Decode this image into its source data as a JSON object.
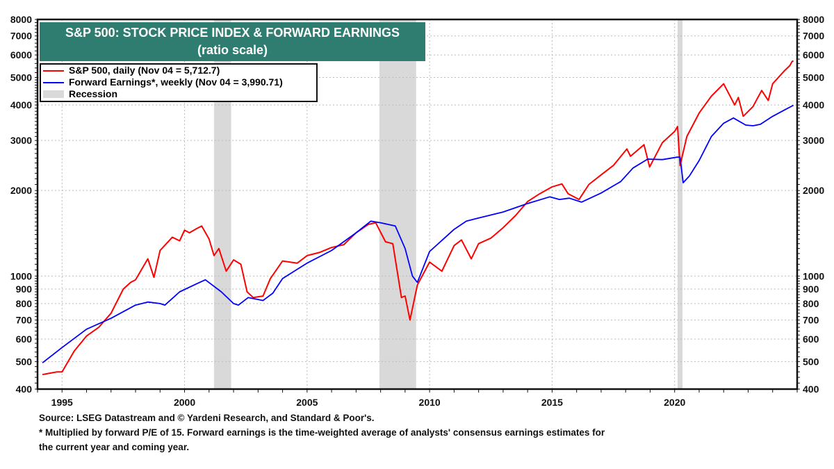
{
  "chart_data": {
    "type": "line",
    "title": "S&P 500: STOCK PRICE INDEX & FORWARD EARNINGS",
    "subtitle": "(ratio scale)",
    "y_scale": "log",
    "ylim": [
      400,
      8000
    ],
    "xlim": [
      1994,
      2025
    ],
    "yticks": [
      "400",
      "500",
      "600",
      "700",
      "800",
      "900",
      "1000",
      "2000",
      "3000",
      "4000",
      "5000",
      "6000",
      "7000",
      "8000"
    ],
    "xticks": [
      "1995",
      "2000",
      "2005",
      "2010",
      "2015",
      "2020"
    ],
    "grid": true,
    "legend_position": "top-left",
    "legend": {
      "sp500": "S&P 500, daily (Nov 04 = 5,712.7)",
      "earnings": "Forward Earnings*, weekly (Nov 04 = 3,990.71)",
      "recession": "Recession"
    },
    "recessions": [
      [
        2001.2,
        2001.9
      ],
      [
        2007.95,
        2009.45
      ],
      [
        2020.12,
        2020.32
      ]
    ],
    "series": [
      {
        "name": "S&P 500, daily",
        "color": "#ff0000",
        "x": [
          1994.2,
          1994.5,
          1994.8,
          1995.0,
          1995.5,
          1996.0,
          1996.5,
          1997.0,
          1997.5,
          1997.8,
          1998.0,
          1998.5,
          1998.75,
          1999.0,
          1999.5,
          1999.8,
          2000.0,
          2000.2,
          2000.5,
          2000.7,
          2001.0,
          2001.2,
          2001.4,
          2001.7,
          2002.0,
          2002.3,
          2002.55,
          2002.8,
          2003.2,
          2003.5,
          2004.0,
          2004.6,
          2005.0,
          2005.5,
          2006.0,
          2006.5,
          2007.0,
          2007.5,
          2007.8,
          2008.2,
          2008.5,
          2008.85,
          2009.0,
          2009.2,
          2009.5,
          2010.0,
          2010.5,
          2011.0,
          2011.3,
          2011.7,
          2012.0,
          2012.5,
          2013.0,
          2013.5,
          2014.0,
          2014.5,
          2015.0,
          2015.4,
          2015.65,
          2016.1,
          2016.5,
          2017.0,
          2017.5,
          2018.05,
          2018.2,
          2018.75,
          2018.98,
          2019.5,
          2020.0,
          2020.12,
          2020.22,
          2020.5,
          2021.0,
          2021.5,
          2022.0,
          2022.45,
          2022.6,
          2022.8,
          2023.2,
          2023.55,
          2023.82,
          2024.0,
          2024.5,
          2024.7,
          2024.8,
          2024.85
        ],
        "values": [
          450,
          455,
          460,
          460,
          545,
          615,
          660,
          740,
          900,
          950,
          970,
          1150,
          990,
          1230,
          1370,
          1330,
          1450,
          1420,
          1470,
          1500,
          1350,
          1180,
          1250,
          1040,
          1140,
          1100,
          880,
          840,
          850,
          980,
          1130,
          1110,
          1180,
          1210,
          1260,
          1290,
          1420,
          1520,
          1540,
          1320,
          1300,
          840,
          850,
          700,
          930,
          1120,
          1040,
          1280,
          1340,
          1150,
          1300,
          1360,
          1480,
          1630,
          1830,
          1950,
          2060,
          2110,
          1950,
          1860,
          2100,
          2270,
          2450,
          2800,
          2640,
          2900,
          2420,
          2950,
          3230,
          3360,
          2450,
          3100,
          3750,
          4300,
          4750,
          4000,
          4250,
          3650,
          3950,
          4500,
          4150,
          4750,
          5300,
          5500,
          5700,
          5712.7
        ]
      },
      {
        "name": "Forward Earnings*, weekly",
        "color": "#0000ff",
        "x": [
          1994.2,
          1995.0,
          1996.0,
          1997.0,
          1998.0,
          1998.5,
          1999.0,
          1999.2,
          1999.8,
          2000.5,
          2000.85,
          2001.5,
          2002.0,
          2002.2,
          2002.6,
          2003.2,
          2003.6,
          2004.0,
          2005.0,
          2006.0,
          2007.0,
          2007.6,
          2008.0,
          2008.6,
          2009.0,
          2009.3,
          2009.5,
          2010.0,
          2011.0,
          2011.5,
          2012.0,
          2013.0,
          2014.0,
          2014.9,
          2015.3,
          2015.7,
          2016.2,
          2017.0,
          2017.8,
          2018.3,
          2018.9,
          2019.5,
          2020.1,
          2020.22,
          2020.35,
          2020.6,
          2021.0,
          2021.5,
          2022.0,
          2022.4,
          2022.9,
          2023.2,
          2023.5,
          2024.0,
          2024.5,
          2024.85
        ],
        "values": [
          495,
          560,
          650,
          710,
          790,
          810,
          800,
          790,
          880,
          940,
          970,
          880,
          800,
          790,
          840,
          820,
          870,
          980,
          1110,
          1230,
          1420,
          1560,
          1540,
          1500,
          1250,
          1000,
          950,
          1220,
          1460,
          1560,
          1600,
          1680,
          1800,
          1900,
          1860,
          1880,
          1820,
          1960,
          2150,
          2400,
          2580,
          2570,
          2620,
          2620,
          2130,
          2250,
          2550,
          3100,
          3450,
          3600,
          3400,
          3380,
          3420,
          3650,
          3850,
          3990.71
        ]
      }
    ]
  },
  "footer": {
    "source": "Source: LSEG Datastream and © Yardeni Research, and Standard & Poor's.",
    "note_line1": "* Multiplied by forward P/E of 15. Forward earnings is the time-weighted average of analysts' consensus earnings estimates for",
    "note_line2": "the current year and coming year."
  }
}
